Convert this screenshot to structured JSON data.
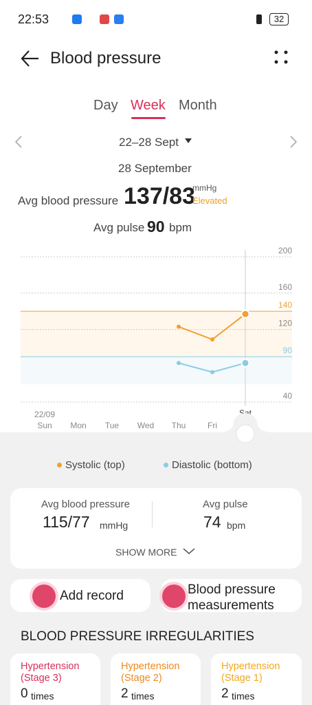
{
  "status_bar": {
    "time": "22:53",
    "battery": "32"
  },
  "header": {
    "title": "Blood pressure"
  },
  "tabs": [
    "Day",
    "Week",
    "Month"
  ],
  "date_range": "22–28 Sept",
  "selected_date": "28 September",
  "avg_bp": {
    "label": "Avg blood pressure",
    "value": "137/83",
    "unit": "mmHg",
    "status": "Elevated"
  },
  "avg_pulse": {
    "label": "Avg pulse",
    "value": "90",
    "unit": "bpm"
  },
  "chart_data": {
    "type": "line",
    "categories": [
      "Sun",
      "Mon",
      "Tue",
      "Wed",
      "Thu",
      "Fri",
      "Sat"
    ],
    "x_start_label": "22/09",
    "series": [
      {
        "name": "Systolic (top)",
        "color": "#f0a030",
        "values": [
          null,
          null,
          null,
          null,
          123,
          109,
          137
        ]
      },
      {
        "name": "Diastolic (bottom)",
        "color": "#8ccbe4",
        "values": [
          null,
          null,
          null,
          null,
          83,
          73,
          83
        ]
      }
    ],
    "ylim": [
      40,
      200
    ],
    "yticks": [
      40,
      120,
      160,
      200
    ],
    "reference_lines": [
      {
        "value": 140,
        "color": "#f0a030"
      },
      {
        "value": 90,
        "color": "#8ccbe4"
      }
    ],
    "grid": true
  },
  "summary": {
    "bp_label": "Avg blood pressure",
    "bp_value": "115/77",
    "bp_unit": "mmHg",
    "pulse_label": "Avg pulse",
    "pulse_value": "74",
    "pulse_unit": "bpm",
    "show_more": "SHOW MORE"
  },
  "actions": [
    "Add record",
    "Blood pressure measurements"
  ],
  "irregularities": {
    "title": "BLOOD PRESSURE IRREGULARITIES",
    "items": [
      {
        "name": "Hypertension (Stage 3)",
        "count": "0",
        "unit": "times"
      },
      {
        "name": "Hypertension (Stage 2)",
        "count": "2",
        "unit": "times"
      },
      {
        "name": "Hypertension (Stage 1)",
        "count": "2",
        "unit": "times"
      }
    ]
  }
}
